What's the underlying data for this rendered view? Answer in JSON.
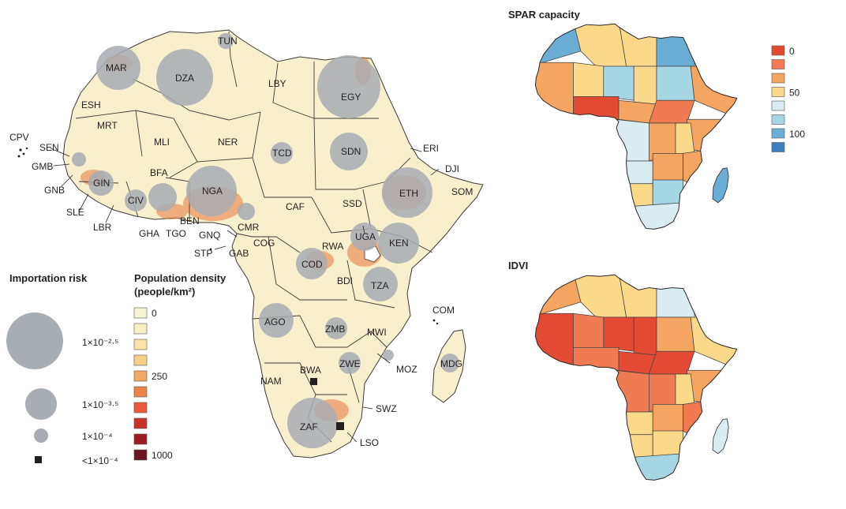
{
  "main_map": {
    "country_codes": [
      {
        "code": "TUN"
      },
      {
        "code": "MAR"
      },
      {
        "code": "DZA"
      },
      {
        "code": "LBY"
      },
      {
        "code": "EGY"
      },
      {
        "code": "ESH"
      },
      {
        "code": "MRT"
      },
      {
        "code": "MLI"
      },
      {
        "code": "NER"
      },
      {
        "code": "TCD"
      },
      {
        "code": "SDN"
      },
      {
        "code": "ERI"
      },
      {
        "code": "DJI"
      },
      {
        "code": "SOM"
      },
      {
        "code": "ETH"
      },
      {
        "code": "SSD"
      },
      {
        "code": "CAF"
      },
      {
        "code": "CPV"
      },
      {
        "code": "SEN"
      },
      {
        "code": "GMB"
      },
      {
        "code": "GNB"
      },
      {
        "code": "GIN"
      },
      {
        "code": "SLE"
      },
      {
        "code": "LBR"
      },
      {
        "code": "CIV"
      },
      {
        "code": "GHA"
      },
      {
        "code": "TGO"
      },
      {
        "code": "BEN"
      },
      {
        "code": "BFA"
      },
      {
        "code": "NGA"
      },
      {
        "code": "CMR"
      },
      {
        "code": "GNQ"
      },
      {
        "code": "STP"
      },
      {
        "code": "GAB"
      },
      {
        "code": "COG"
      },
      {
        "code": "COD"
      },
      {
        "code": "RWA"
      },
      {
        "code": "BDI"
      },
      {
        "code": "UGA"
      },
      {
        "code": "KEN"
      },
      {
        "code": "TZA"
      },
      {
        "code": "AGO"
      },
      {
        "code": "ZMB"
      },
      {
        "code": "MWI"
      },
      {
        "code": "MOZ"
      },
      {
        "code": "ZWE"
      },
      {
        "code": "COM"
      },
      {
        "code": "MDG"
      },
      {
        "code": "NAM"
      },
      {
        "code": "BWA"
      },
      {
        "code": "SWZ"
      },
      {
        "code": "ZAF"
      },
      {
        "code": "LSO"
      }
    ],
    "importation_risk_circles": [
      {
        "code": "MAR",
        "risk": "1×10⁻²·⁵"
      },
      {
        "code": "DZA",
        "risk": "1×10⁻²·⁵"
      },
      {
        "code": "EGY",
        "risk": "1×10⁻²·⁵"
      },
      {
        "code": "TUN",
        "risk": "1×10⁻⁴"
      },
      {
        "code": "NGA",
        "risk": "1×10⁻²·⁵"
      },
      {
        "code": "ETH",
        "risk": "1×10⁻²·⁵"
      },
      {
        "code": "ZAF",
        "risk": "1×10⁻²·⁵"
      },
      {
        "code": "KEN",
        "risk": "1×10⁻³·⁵"
      },
      {
        "code": "SDN",
        "risk": "1×10⁻³·⁵"
      },
      {
        "code": "TZA",
        "risk": "1×10⁻³·⁵"
      },
      {
        "code": "AGO",
        "risk": "1×10⁻³·⁵"
      },
      {
        "code": "COD",
        "risk": "1×10⁻³·⁵"
      },
      {
        "code": "UGA",
        "risk": "1×10⁻³·⁵"
      },
      {
        "code": "GHA",
        "risk": "1×10⁻³·⁵"
      },
      {
        "code": "TCD",
        "risk": "1×10⁻⁴"
      },
      {
        "code": "GIN",
        "risk": "1×10⁻⁴"
      },
      {
        "code": "CIV",
        "risk": "1×10⁻⁴"
      },
      {
        "code": "ZMB",
        "risk": "1×10⁻⁴"
      },
      {
        "code": "ZWE",
        "risk": "1×10⁻⁴"
      },
      {
        "code": "MDG",
        "risk": "1×10⁻⁴"
      },
      {
        "code": "CMR",
        "risk": "1×10⁻⁴"
      },
      {
        "code": "SEN",
        "risk": "1×10⁻⁴"
      },
      {
        "code": "MOZ",
        "risk": "1×10⁻⁴"
      },
      {
        "code": "BWA",
        "risk": "<1×10⁻⁴"
      },
      {
        "code": "LSO",
        "risk": "<1×10⁻⁴"
      }
    ]
  },
  "legend_importation": {
    "title": "Importation risk",
    "items": [
      "1×10⁻²·⁵",
      "1×10⁻³·⁵",
      "1×10⁻⁴",
      "<1×10⁻⁴"
    ]
  },
  "legend_density": {
    "title_line1": "Population density",
    "title_line2": "(people/km²)",
    "colors": [
      "#f6f4d4",
      "#f8f0c4",
      "#f8e4a8",
      "#f6cf88",
      "#f2aa66",
      "#ee8448",
      "#e85a3a",
      "#c8322c",
      "#9c1c24",
      "#6e1420"
    ],
    "labels": [
      "0",
      "",
      "",
      "",
      "250",
      "",
      "",
      "",
      "",
      "1000"
    ]
  },
  "spar_map": {
    "title": "SPAR capacity",
    "legend_colors": [
      "#e34a33",
      "#f07a52",
      "#f4a562",
      "#fbd98a",
      "#d8ecf2",
      "#a6d5e4",
      "#6aaed6",
      "#3d7ec0"
    ],
    "legend_labels": [
      "0",
      "",
      "",
      "50",
      "",
      "",
      "100",
      ""
    ]
  },
  "idvi_map": {
    "title": "IDVI"
  }
}
